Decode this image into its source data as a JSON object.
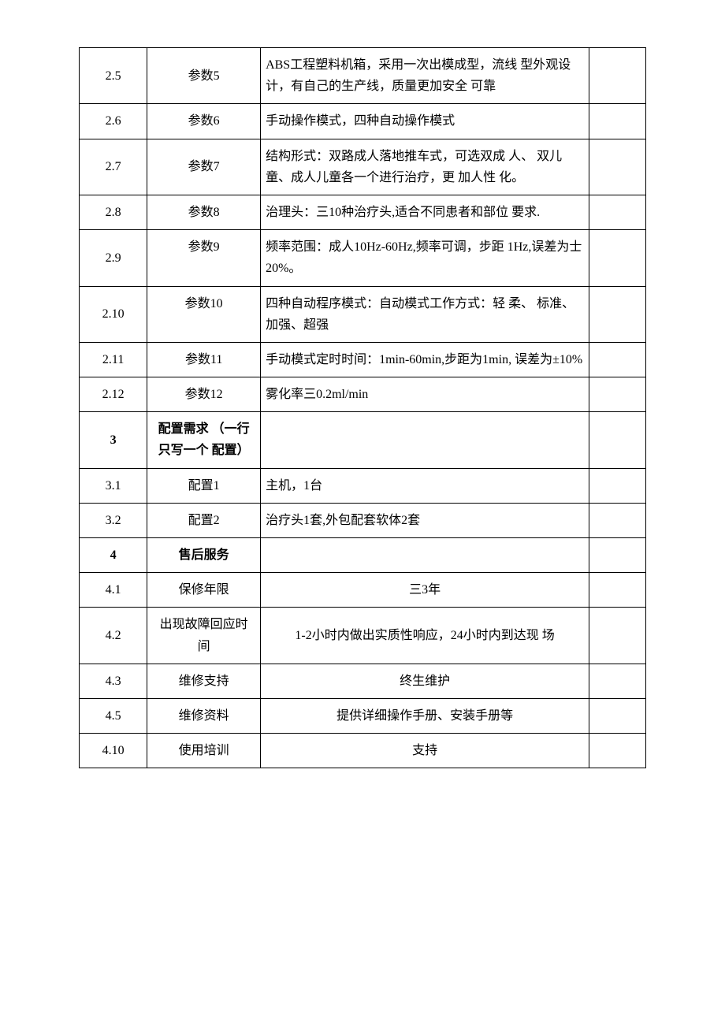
{
  "rows": [
    {
      "idx": "2.5",
      "name": "参数5",
      "desc": " ABS工程塑料机箱，采用一次出模成型，流线 型外观设计，有自己的生产线，质量更加安全 可靠",
      "desc_align": "left",
      "name_valign": "middle"
    },
    {
      "idx": "2.6",
      "name": "参数6",
      "desc": "手动操作模式，四种自动操作模式",
      "desc_align": "left"
    },
    {
      "idx": "2.7",
      "name": "参数7",
      "desc": " 结构形式：双路成人落地推车式，可选双成 人、 双儿童、成人儿童各一个进行治疗，更 加人性 化。",
      "desc_align": "left"
    },
    {
      "idx": "2.8",
      "name": "参数8",
      "desc": " 治理头：三10种治疗头,适合不同患者和部位 要求.",
      "desc_align": "left",
      "name_valign": "top"
    },
    {
      "idx": "2.9",
      "name": "参数9",
      "desc": " 频率范围：成人10Hz-60Hz,频率可调，步距 1Hz,误差为士20%。",
      "desc_align": "left",
      "name_valign": "top"
    },
    {
      "idx": "2.10",
      "name": "参数10",
      "desc": " 四种自动程序模式：自动模式工作方式：轻 柔、 标准、加强、超强",
      "desc_align": "left",
      "name_valign": "top"
    },
    {
      "idx": "2.11",
      "name": "参数11",
      "desc": " 手动模式定时时间：1min-60min,步距为1min, 误差为±10%",
      "desc_align": "left",
      "name_valign": "top"
    },
    {
      "idx": "2.12",
      "name": "参数12",
      "desc": "雾化率三0.2ml/min",
      "desc_align": "left",
      "name_valign": "top"
    },
    {
      "idx": "3",
      "name": "配置需求 （一行只写一个 配置）",
      "desc": "",
      "desc_align": "left",
      "bold": true
    },
    {
      "idx": "3.1",
      "name": "配置1",
      "desc": "主机，1台",
      "desc_align": "left"
    },
    {
      "idx": "3.2",
      "name": "配置2",
      "desc": "治疗头1套,外包配套软体2套",
      "desc_align": "left"
    },
    {
      "idx": "4",
      "name": "售后服务",
      "desc": "",
      "desc_align": "left",
      "bold": true
    },
    {
      "idx": "4.1",
      "name": "保修年限",
      "desc": "三3年",
      "desc_align": "center"
    },
    {
      "idx": "4.2",
      "name": "出现故障回应时 间",
      "desc": "1-2小时内做出实质性响应，24小时内到达现 场",
      "desc_align": "center"
    },
    {
      "idx": "4.3",
      "name": "维修支持",
      "desc": "终生维护",
      "desc_align": "center"
    },
    {
      "idx": "4.5",
      "name": "维修资料",
      "desc": "提供详细操作手册、安装手册等",
      "desc_align": "center"
    },
    {
      "idx": "4.10",
      "name": "使用培训",
      "desc": "支持",
      "desc_align": "center"
    }
  ]
}
